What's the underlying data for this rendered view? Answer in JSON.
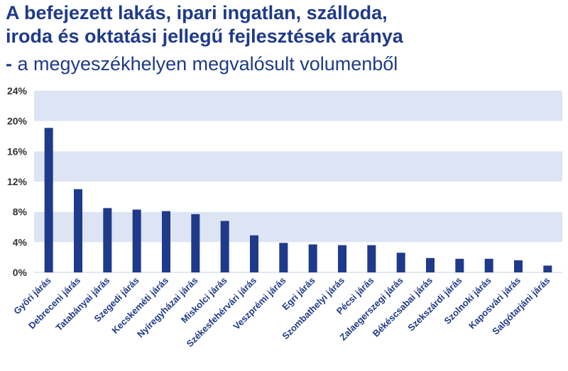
{
  "header": {
    "title_line1": "A befejezett lakás, ipari ingatlan, szálloda,",
    "title_line2": "iroda és oktatási jellegű fejlesztések aránya",
    "subtitle_dash": "-",
    "subtitle_text": " a megyeszékhelyen megvalósult volumenből"
  },
  "colors": {
    "bar": "#1f3a8a",
    "band": "#dde4f4",
    "title": "#1f3a8a"
  },
  "chart_data": {
    "type": "bar",
    "title": "A befejezett lakás, ipari ingatlan, szálloda, iroda és oktatási jellegű fejlesztések aránya - a megyeszékhelyen megvalósult volumenből",
    "xlabel": "",
    "ylabel": "",
    "ylim": [
      0,
      24
    ],
    "yticks": [
      0,
      4,
      8,
      12,
      16,
      20,
      24
    ],
    "ytick_labels": [
      "0%",
      "4%",
      "8%",
      "12%",
      "16%",
      "20%",
      "24%"
    ],
    "grid": "horizontal alternating bands",
    "legend": "none",
    "categories": [
      "Győri járás",
      "Debreceni járás",
      "Tatabányai járás",
      "Szegedi járás",
      "Kecskeméti járás",
      "Nyíregyházai járás",
      "Miskolci járás",
      "Székesfehérvári járás",
      "Veszprémi járás",
      "Egri járás",
      "Szombathelyi járás",
      "Pécsi járás",
      "Zalaegerszegi járás",
      "Békéscsabai járás",
      "Szekszárdi járás",
      "Szolnoki járás",
      "Kaposvári járás",
      "Salgótarjáni járás"
    ],
    "values": [
      19.1,
      11.0,
      8.5,
      8.3,
      8.1,
      7.7,
      6.8,
      4.9,
      3.9,
      3.7,
      3.6,
      3.6,
      2.6,
      1.9,
      1.8,
      1.8,
      1.6,
      0.9
    ]
  }
}
